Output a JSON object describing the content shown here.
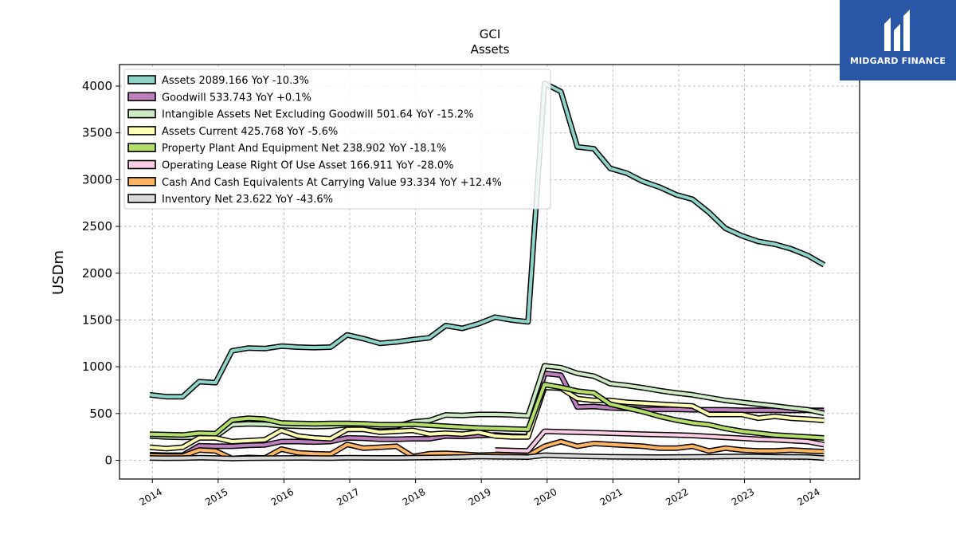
{
  "brand": {
    "name": "MIDGARD FINANCE",
    "bg": "#2a56a6"
  },
  "chart_data": {
    "type": "line",
    "title": "GCI",
    "subtitle": "Assets",
    "ylabel": "USDm",
    "xlabel": "",
    "xlim": [
      2013.5,
      2024.75
    ],
    "ylim": [
      -200,
      4230
    ],
    "x_ticks": [
      "2014",
      "2015",
      "2016",
      "2017",
      "2018",
      "2019",
      "2020",
      "2021",
      "2022",
      "2023",
      "2024"
    ],
    "y_ticks": [
      0,
      500,
      1000,
      1500,
      2000,
      2500,
      3000,
      3500,
      4000
    ],
    "grid": true,
    "legend_position": "top-left",
    "x": [
      2013.96,
      2014.21,
      2014.46,
      2014.71,
      2014.96,
      2015.21,
      2015.46,
      2015.71,
      2015.96,
      2016.21,
      2016.46,
      2016.71,
      2016.96,
      2017.21,
      2017.46,
      2017.71,
      2017.96,
      2018.21,
      2018.46,
      2018.71,
      2018.96,
      2019.21,
      2019.46,
      2019.71,
      2019.96,
      2020.21,
      2020.46,
      2020.71,
      2020.96,
      2021.21,
      2021.46,
      2021.71,
      2021.96,
      2022.21,
      2022.46,
      2022.71,
      2022.96,
      2023.21,
      2023.46,
      2023.71,
      2023.96,
      2024.21
    ],
    "series": [
      {
        "name": "Assets",
        "legend": "Assets  2089.166 YoY -10.3%",
        "color": "#8dd3c7",
        "values": [
          700,
          680,
          680,
          840,
          830,
          1170,
          1200,
          1195,
          1220,
          1210,
          1205,
          1210,
          1340,
          1300,
          1250,
          1265,
          1290,
          1310,
          1440,
          1410,
          1460,
          1530,
          1500,
          1480,
          4030,
          3940,
          3350,
          3330,
          3120,
          3070,
          2980,
          2920,
          2840,
          2790,
          2650,
          2480,
          2400,
          2340,
          2310,
          2260,
          2190,
          2089.166
        ]
      },
      {
        "name": "Goodwill",
        "legend": "Goodwill  533.743 YoY +0.1%",
        "color": "#bc80bd",
        "values": [
          60,
          55,
          55,
          155,
          150,
          150,
          160,
          165,
          200,
          200,
          195,
          200,
          240,
          235,
          225,
          225,
          230,
          230,
          260,
          255,
          265,
          270,
          260,
          255,
          930,
          910,
          570,
          575,
          560,
          555,
          545,
          545,
          545,
          540,
          540,
          540,
          535,
          535,
          535,
          533,
          534,
          533.743
        ]
      },
      {
        "name": "Intangible Assets Net Excluding Goodwill",
        "legend": "Intangible Assets Net Excluding Goodwill  501.64 YoY -15.2%",
        "color": "#ccebc5",
        "values": [
          260,
          250,
          245,
          250,
          255,
          380,
          390,
          385,
          370,
          365,
          360,
          365,
          380,
          375,
          360,
          365,
          410,
          425,
          485,
          480,
          490,
          490,
          485,
          475,
          1010,
          990,
          930,
          900,
          820,
          800,
          775,
          745,
          720,
          700,
          670,
          640,
          620,
          600,
          580,
          560,
          540,
          501.64
        ]
      },
      {
        "name": "Assets Current",
        "legend": "Assets Current  425.768 YoY -5.6%",
        "color": "#ffffb3",
        "values": [
          140,
          125,
          140,
          240,
          240,
          200,
          210,
          220,
          320,
          260,
          240,
          230,
          330,
          330,
          300,
          310,
          320,
          280,
          290,
          280,
          300,
          260,
          250,
          250,
          780,
          770,
          660,
          640,
          640,
          620,
          610,
          600,
          590,
          580,
          490,
          490,
          490,
          450,
          470,
          450,
          440,
          425.768
        ]
      },
      {
        "name": "Property Plant And Equipment Net",
        "legend": "Property Plant And Equipment Net  238.902 YoY -18.1%",
        "color": "#b3de69",
        "values": [
          280,
          275,
          270,
          290,
          285,
          430,
          450,
          440,
          400,
          395,
          390,
          395,
          395,
          390,
          380,
          380,
          385,
          375,
          365,
          355,
          345,
          340,
          335,
          330,
          810,
          780,
          740,
          720,
          600,
          560,
          520,
          470,
          430,
          400,
          380,
          340,
          310,
          290,
          270,
          260,
          250,
          238.902
        ]
      },
      {
        "name": "Operating Lease Right Of Use Asset",
        "legend": "Operating Lease Right Of Use Asset  166.911 YoY -28.0%",
        "color": "#fccde5",
        "values": [
          null,
          null,
          null,
          null,
          null,
          null,
          null,
          null,
          null,
          null,
          null,
          null,
          null,
          null,
          null,
          null,
          null,
          null,
          null,
          null,
          null,
          110,
          105,
          100,
          310,
          305,
          300,
          295,
          290,
          285,
          280,
          275,
          270,
          265,
          255,
          245,
          235,
          225,
          220,
          210,
          200,
          166.911
        ]
      },
      {
        "name": "Cash And Cash Equivalents At Carrying Value",
        "legend": "Cash And Cash Equivalents At Carrying Value  93.334 YoY +12.4%",
        "color": "#fdb462",
        "values": [
          50,
          45,
          45,
          110,
          100,
          20,
          30,
          25,
          120,
          80,
          70,
          65,
          170,
          130,
          140,
          150,
          40,
          70,
          75,
          65,
          55,
          60,
          55,
          50,
          150,
          200,
          150,
          180,
          170,
          160,
          150,
          130,
          130,
          150,
          100,
          130,
          110,
          100,
          100,
          110,
          100,
          93.334
        ]
      },
      {
        "name": "Inventory Net",
        "legend": "Inventory Net  23.622 YoY -43.6%",
        "color": "#d9d9d9",
        "values": [
          25,
          22,
          24,
          28,
          25,
          20,
          22,
          24,
          25,
          26,
          25,
          24,
          28,
          27,
          26,
          26,
          28,
          30,
          32,
          35,
          40,
          38,
          36,
          34,
          55,
          50,
          45,
          40,
          38,
          36,
          35,
          34,
          35,
          36,
          38,
          40,
          42,
          40,
          38,
          36,
          35,
          23.622
        ]
      }
    ]
  }
}
